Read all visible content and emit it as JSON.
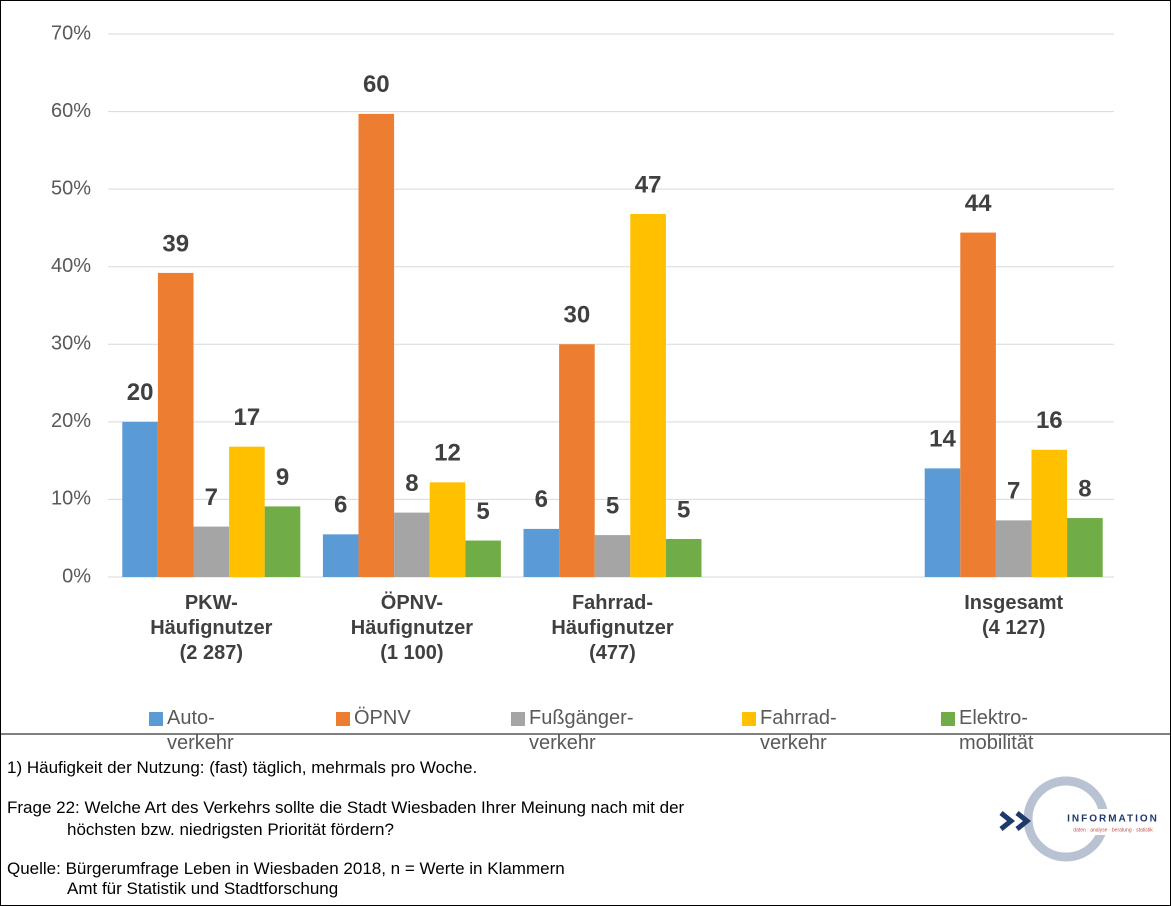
{
  "chart_data": {
    "type": "bar",
    "categories": [
      "PKW-\nHäufignutzer\n(2 287)",
      "ÖPNV-\nHäufignutzer\n(1 100)",
      "Fahrrad-\nHäufignutzer\n(477)",
      null,
      "Insgesamt\n(4 127)"
    ],
    "series": [
      {
        "name": "Auto-\nverkehr",
        "color": "#5b9bd5",
        "values": [
          20,
          5.5,
          6.2,
          null,
          14
        ],
        "value_labels": [
          "20",
          "6",
          "6",
          null,
          "14"
        ]
      },
      {
        "name": "ÖPNV",
        "color": "#ed7d31",
        "values": [
          39.2,
          59.7,
          30,
          null,
          44.4
        ],
        "value_labels": [
          "39",
          "60",
          "30",
          null,
          "44"
        ]
      },
      {
        "name": "Fußgänger-\nverkehr",
        "color": "#a5a5a5",
        "values": [
          6.5,
          8.3,
          5.4,
          null,
          7.3
        ],
        "value_labels": [
          "7",
          "8",
          "5",
          null,
          "7"
        ]
      },
      {
        "name": "Fahrrad-\nverkehr",
        "color": "#ffc000",
        "values": [
          16.8,
          12.2,
          46.8,
          null,
          16.4
        ],
        "value_labels": [
          "17",
          "12",
          "47",
          null,
          "16"
        ]
      },
      {
        "name": "Elektro-\nmobilität",
        "color": "#70ad47",
        "values": [
          9.1,
          4.7,
          4.9,
          null,
          7.6
        ],
        "value_labels": [
          "9",
          "5",
          "5",
          null,
          "8"
        ]
      }
    ],
    "ylim": [
      0,
      70
    ],
    "yticks": [
      {
        "value": 0,
        "label": "0%"
      },
      {
        "value": 10,
        "label": "10%"
      },
      {
        "value": 20,
        "label": "20%"
      },
      {
        "value": 30,
        "label": "30%"
      },
      {
        "value": 40,
        "label": "40%"
      },
      {
        "value": 50,
        "label": "50%"
      },
      {
        "value": 60,
        "label": "60%"
      },
      {
        "value": 70,
        "label": "70%"
      }
    ],
    "grid": true
  },
  "notes": [
    "1)  Häufigkeit der Nutzung: (fast) täglich, mehrmals pro Woche.",
    "Frage 22: Welche Art des Verkehrs sollte die Stadt Wiesbaden Ihrer Meinung nach mit der",
    "höchsten bzw. niedrigsten Priorität fördern?",
    "Quelle: Bürgerumfrage Leben in Wiesbaden 2018, n = Werte in Klammern",
    "Amt für Statistik und Stadtforschung"
  ],
  "logo": {
    "title": "INFORMATION",
    "subtitle": "daten · analyse · beratung · statistik"
  }
}
